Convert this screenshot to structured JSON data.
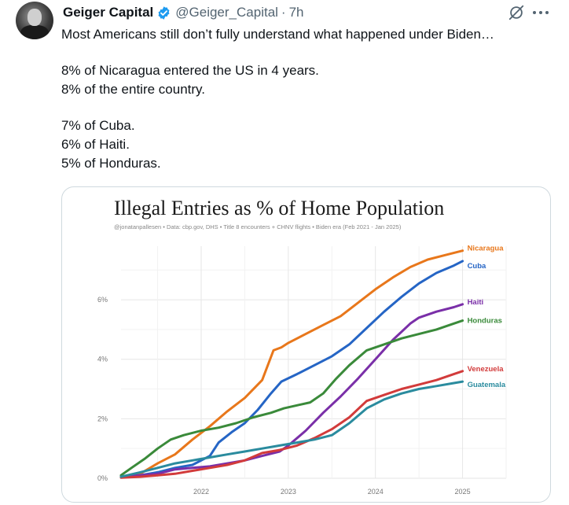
{
  "tweet": {
    "author_name": "Geiger Capital",
    "handle": "@Geiger_Capital",
    "separator": "·",
    "time": "7h",
    "lines": [
      "Most Americans still don’t fully understand what happened under Biden…",
      "8% of Nicaragua entered the US in 4 years.",
      "8% of the entire country.",
      "7% of Cuba.",
      "6% of Haiti.",
      "5% of Honduras."
    ]
  },
  "colors": {
    "verified": "#1d9bf0",
    "text": "#0f1419",
    "muted": "#536471"
  },
  "chart_data": {
    "type": "line",
    "title": "Illegal Entries as % of Home Population",
    "subtitle": "@jonatanpallesen  •  Data: cbp.gov, DHS  •  Title 8 encounters + CHNV flights  •  Biden era (Feb 2021 - Jan 2025)",
    "xlabel": "",
    "ylabel": "",
    "xlim": [
      2021.08,
      2025.5
    ],
    "ylim": [
      0,
      7.8
    ],
    "x_ticks": [
      2022,
      2023,
      2024,
      2025
    ],
    "x_tick_labels": [
      "2022",
      "2023",
      "2024",
      "2025"
    ],
    "y_ticks": [
      0,
      2,
      4,
      6
    ],
    "y_tick_labels": [
      "0%",
      "2%",
      "4%",
      "6%"
    ],
    "grid": true,
    "legend": "end-of-line labels",
    "series": [
      {
        "name": "Nicaragua",
        "color": "#e8771b",
        "x": [
          2021.08,
          2021.3,
          2021.5,
          2021.7,
          2021.9,
          2022.1,
          2022.3,
          2022.5,
          2022.7,
          2022.83,
          2022.92,
          2023.0,
          2023.2,
          2023.4,
          2023.6,
          2023.8,
          2024.0,
          2024.2,
          2024.4,
          2024.6,
          2024.8,
          2025.0
        ],
        "values": [
          0.05,
          0.15,
          0.5,
          0.8,
          1.3,
          1.75,
          2.25,
          2.7,
          3.3,
          4.3,
          4.4,
          4.55,
          4.85,
          5.15,
          5.45,
          5.9,
          6.35,
          6.75,
          7.1,
          7.35,
          7.5,
          7.65
        ]
      },
      {
        "name": "Cuba",
        "color": "#2565c5",
        "x": [
          2021.08,
          2021.3,
          2021.5,
          2021.7,
          2021.9,
          2022.1,
          2022.2,
          2022.35,
          2022.5,
          2022.65,
          2022.8,
          2022.92,
          2023.1,
          2023.3,
          2023.5,
          2023.7,
          2023.9,
          2024.1,
          2024.3,
          2024.5,
          2024.7,
          2024.9,
          2025.0
        ],
        "values": [
          0.05,
          0.1,
          0.2,
          0.35,
          0.45,
          0.75,
          1.2,
          1.55,
          1.85,
          2.3,
          2.85,
          3.25,
          3.5,
          3.8,
          4.1,
          4.5,
          5.05,
          5.6,
          6.1,
          6.55,
          6.9,
          7.15,
          7.3
        ]
      },
      {
        "name": "Haiti",
        "color": "#7a2fa8",
        "x": [
          2021.08,
          2021.3,
          2021.5,
          2021.7,
          2021.9,
          2022.1,
          2022.3,
          2022.5,
          2022.7,
          2022.9,
          2023.0,
          2023.2,
          2023.4,
          2023.6,
          2023.8,
          2024.0,
          2024.2,
          2024.4,
          2024.5,
          2024.7,
          2024.9,
          2025.0
        ],
        "values": [
          0.05,
          0.1,
          0.15,
          0.3,
          0.35,
          0.4,
          0.5,
          0.6,
          0.75,
          0.9,
          1.1,
          1.6,
          2.2,
          2.75,
          3.35,
          4.0,
          4.65,
          5.2,
          5.4,
          5.6,
          5.75,
          5.85
        ]
      },
      {
        "name": "Honduras",
        "color": "#3a8a3a",
        "x": [
          2021.08,
          2021.2,
          2021.35,
          2021.5,
          2021.65,
          2021.8,
          2022.0,
          2022.2,
          2022.4,
          2022.6,
          2022.8,
          2022.95,
          2023.1,
          2023.25,
          2023.4,
          2023.55,
          2023.7,
          2023.9,
          2024.1,
          2024.3,
          2024.5,
          2024.7,
          2024.9,
          2025.0
        ],
        "values": [
          0.1,
          0.35,
          0.65,
          1.0,
          1.3,
          1.45,
          1.6,
          1.7,
          1.85,
          2.05,
          2.2,
          2.35,
          2.45,
          2.55,
          2.85,
          3.35,
          3.8,
          4.3,
          4.5,
          4.7,
          4.85,
          5.0,
          5.2,
          5.3
        ]
      },
      {
        "name": "Venezuela",
        "color": "#d23b3b",
        "x": [
          2021.08,
          2021.3,
          2021.5,
          2021.7,
          2021.9,
          2022.1,
          2022.3,
          2022.5,
          2022.7,
          2022.9,
          2023.1,
          2023.3,
          2023.5,
          2023.7,
          2023.9,
          2024.1,
          2024.3,
          2024.5,
          2024.7,
          2024.9,
          2025.0
        ],
        "values": [
          0.02,
          0.05,
          0.1,
          0.15,
          0.25,
          0.35,
          0.45,
          0.6,
          0.85,
          0.95,
          1.1,
          1.35,
          1.65,
          2.05,
          2.6,
          2.8,
          3.0,
          3.15,
          3.3,
          3.5,
          3.6
        ]
      },
      {
        "name": "Guatemala",
        "color": "#2a8b9e",
        "x": [
          2021.08,
          2021.3,
          2021.5,
          2021.7,
          2021.9,
          2022.1,
          2022.3,
          2022.5,
          2022.7,
          2022.9,
          2023.1,
          2023.3,
          2023.5,
          2023.7,
          2023.9,
          2024.1,
          2024.3,
          2024.5,
          2024.7,
          2024.9,
          2025.0
        ],
        "values": [
          0.05,
          0.2,
          0.35,
          0.5,
          0.6,
          0.7,
          0.8,
          0.9,
          1.0,
          1.1,
          1.2,
          1.3,
          1.45,
          1.85,
          2.35,
          2.65,
          2.85,
          3.0,
          3.1,
          3.2,
          3.25
        ]
      }
    ]
  }
}
